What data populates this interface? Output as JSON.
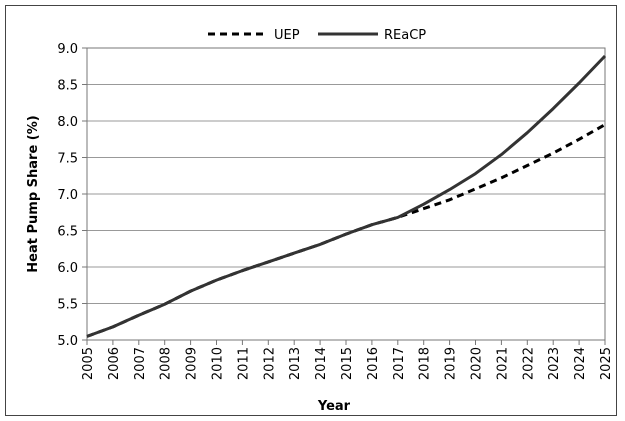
{
  "chart_data": {
    "type": "line",
    "title": "",
    "xlabel": "Year",
    "ylabel": "Heat Pump Share (%)",
    "categories": [
      "2005",
      "2006",
      "2007",
      "2008",
      "2009",
      "2010",
      "2011",
      "2012",
      "2013",
      "2014",
      "2015",
      "2016",
      "2017",
      "2018",
      "2019",
      "2020",
      "2021",
      "2022",
      "2023",
      "2024",
      "2025"
    ],
    "ylim": [
      5.0,
      9.0
    ],
    "yticks": [
      "5.0",
      "5.5",
      "6.0",
      "6.5",
      "7.0",
      "7.5",
      "8.0",
      "8.5",
      "9.0"
    ],
    "grid": true,
    "legend_position": "top-center",
    "series": [
      {
        "name": "UEP",
        "style": "dashed",
        "color": "#000000",
        "values": [
          5.05,
          5.18,
          5.34,
          5.49,
          5.67,
          5.82,
          5.95,
          6.07,
          6.19,
          6.31,
          6.45,
          6.58,
          6.68,
          6.8,
          6.92,
          7.07,
          7.22,
          7.39,
          7.56,
          7.75,
          7.95
        ]
      },
      {
        "name": "REaCP",
        "style": "solid",
        "color": "#333333",
        "values": [
          5.05,
          5.18,
          5.34,
          5.49,
          5.67,
          5.82,
          5.95,
          6.07,
          6.19,
          6.31,
          6.45,
          6.58,
          6.68,
          6.86,
          7.06,
          7.28,
          7.54,
          7.84,
          8.17,
          8.52,
          8.89
        ]
      }
    ]
  }
}
